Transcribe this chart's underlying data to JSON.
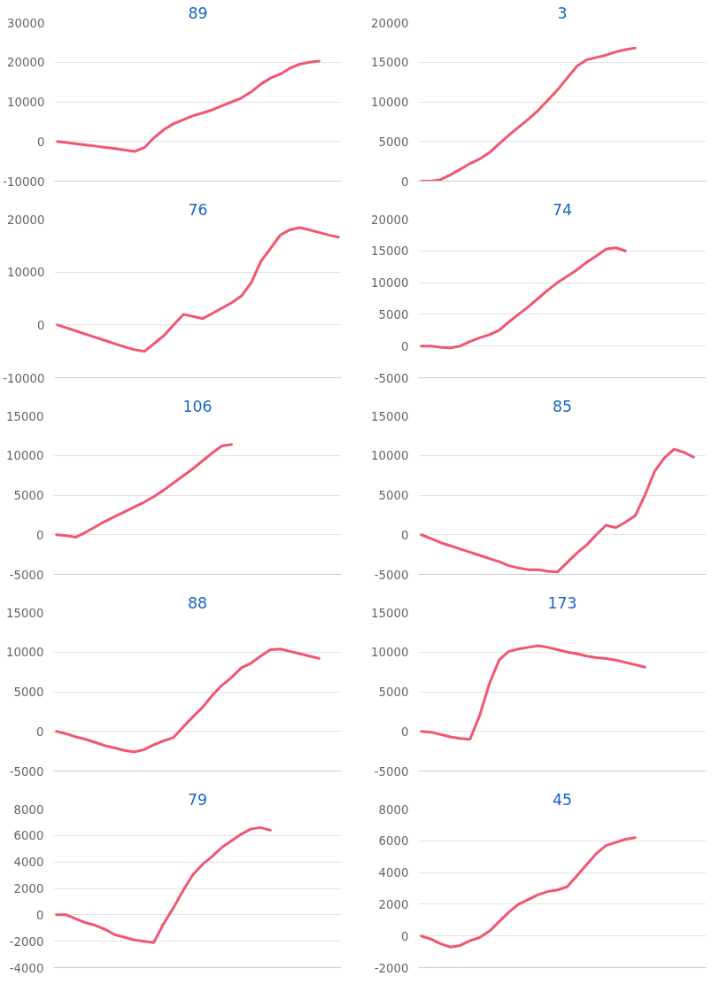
{
  "chart_data": [
    {
      "type": "line",
      "title": "89",
      "categories": [
        null,
        null,
        null,
        null,
        null,
        null,
        null,
        null,
        null,
        null,
        null,
        null,
        null,
        null,
        null,
        null,
        null,
        null,
        null,
        null,
        null,
        null,
        null,
        null,
        null,
        null,
        null,
        null,
        null,
        null
      ],
      "values": [
        0,
        -300,
        -600,
        -900,
        -1200,
        -1500,
        -1800,
        -2200,
        -2500,
        -1500,
        1000,
        3000,
        4500,
        5500,
        6500,
        7200,
        8000,
        9000,
        10000,
        11000,
        12500,
        14500,
        16000,
        17000,
        18500,
        19500,
        20000,
        20300,
        null,
        null
      ],
      "color": "#f2566e",
      "ylim": [
        -10000,
        30000
      ],
      "yticks": [
        -10000,
        0,
        10000,
        20000,
        30000
      ],
      "grid": "y"
    },
    {
      "type": "line",
      "title": "3",
      "categories": [
        null,
        null,
        null,
        null,
        null,
        null,
        null,
        null,
        null,
        null,
        null,
        null,
        null,
        null,
        null,
        null,
        null,
        null,
        null,
        null,
        null,
        null,
        null,
        null,
        null,
        null,
        null,
        null,
        null,
        null
      ],
      "values": [
        0,
        0,
        200,
        800,
        1500,
        2200,
        2800,
        3600,
        4700,
        5800,
        6800,
        7800,
        8900,
        10200,
        11500,
        13000,
        14500,
        15300,
        15600,
        15900,
        16300,
        16600,
        16800,
        null,
        null,
        null,
        null,
        null,
        null,
        null
      ],
      "color": "#f2566e",
      "ylim": [
        0,
        20000
      ],
      "yticks": [
        0,
        5000,
        10000,
        15000,
        20000
      ],
      "grid": "y"
    },
    {
      "type": "line",
      "title": "76",
      "categories": [
        null,
        null,
        null,
        null,
        null,
        null,
        null,
        null,
        null,
        null,
        null,
        null,
        null,
        null,
        null,
        null,
        null,
        null,
        null,
        null,
        null,
        null,
        null,
        null,
        null,
        null,
        null,
        null,
        null,
        null
      ],
      "values": [
        0,
        -600,
        -1200,
        -1800,
        -2400,
        -3000,
        -3600,
        -4200,
        -4700,
        -5000,
        -3500,
        -2000,
        0,
        2000,
        1600,
        1200,
        2200,
        3200,
        4200,
        5500,
        8000,
        12000,
        14500,
        17000,
        18000,
        18400,
        18000,
        17500,
        17000,
        16600
      ],
      "color": "#f2566e",
      "ylim": [
        -10000,
        20000
      ],
      "yticks": [
        -10000,
        0,
        10000,
        20000
      ],
      "grid": "y"
    },
    {
      "type": "line",
      "title": "74",
      "categories": [
        null,
        null,
        null,
        null,
        null,
        null,
        null,
        null,
        null,
        null,
        null,
        null,
        null,
        null,
        null,
        null,
        null,
        null,
        null,
        null,
        null,
        null,
        null,
        null,
        null,
        null,
        null,
        null,
        null,
        null
      ],
      "values": [
        0,
        0,
        -200,
        -300,
        0,
        700,
        1300,
        1800,
        2500,
        3800,
        5000,
        6200,
        7500,
        8800,
        10000,
        11000,
        12000,
        13200,
        14200,
        15300,
        15500,
        15000,
        null,
        null,
        null,
        null,
        null,
        null,
        null,
        null
      ],
      "color": "#f2566e",
      "ylim": [
        -5000,
        20000
      ],
      "yticks": [
        -5000,
        0,
        5000,
        10000,
        15000,
        20000
      ],
      "grid": "y"
    },
    {
      "type": "line",
      "title": "106",
      "categories": [
        null,
        null,
        null,
        null,
        null,
        null,
        null,
        null,
        null,
        null,
        null,
        null,
        null,
        null,
        null,
        null,
        null,
        null,
        null,
        null,
        null,
        null,
        null,
        null,
        null,
        null,
        null,
        null,
        null,
        null
      ],
      "values": [
        0,
        -100,
        -300,
        300,
        1000,
        1700,
        2300,
        2900,
        3500,
        4100,
        4800,
        5600,
        6500,
        7400,
        8300,
        9300,
        10300,
        11200,
        11400,
        null,
        null,
        null,
        null,
        null,
        null,
        null,
        null,
        null,
        null,
        null
      ],
      "color": "#f2566e",
      "ylim": [
        -5000,
        15000
      ],
      "yticks": [
        -5000,
        0,
        5000,
        10000,
        15000
      ],
      "grid": "y"
    },
    {
      "type": "line",
      "title": "85",
      "categories": [
        null,
        null,
        null,
        null,
        null,
        null,
        null,
        null,
        null,
        null,
        null,
        null,
        null,
        null,
        null,
        null,
        null,
        null,
        null,
        null,
        null,
        null,
        null,
        null,
        null,
        null,
        null,
        null,
        null,
        null
      ],
      "values": [
        0,
        -500,
        -1000,
        -1400,
        -1800,
        -2200,
        -2600,
        -3000,
        -3400,
        -3900,
        -4200,
        -4400,
        -4400,
        -4600,
        -4700,
        -3500,
        -2300,
        -1300,
        0,
        1200,
        900,
        1600,
        2400,
        5000,
        8000,
        9700,
        10800,
        10400,
        9800,
        null
      ],
      "color": "#f2566e",
      "ylim": [
        -5000,
        15000
      ],
      "yticks": [
        -5000,
        0,
        5000,
        10000,
        15000
      ],
      "grid": "y"
    },
    {
      "type": "line",
      "title": "88",
      "categories": [
        null,
        null,
        null,
        null,
        null,
        null,
        null,
        null,
        null,
        null,
        null,
        null,
        null,
        null,
        null,
        null,
        null,
        null,
        null,
        null,
        null,
        null,
        null,
        null,
        null,
        null,
        null,
        null,
        null,
        null
      ],
      "values": [
        0,
        -300,
        -700,
        -1000,
        -1400,
        -1800,
        -2100,
        -2400,
        -2600,
        -2300,
        -1700,
        -1200,
        -800,
        500,
        1800,
        3000,
        4500,
        5800,
        6800,
        8000,
        8600,
        9500,
        10300,
        10400,
        10100,
        9800,
        9500,
        9200,
        null,
        null
      ],
      "color": "#f2566e",
      "ylim": [
        -5000,
        15000
      ],
      "yticks": [
        -5000,
        0,
        5000,
        10000,
        15000
      ],
      "grid": "y"
    },
    {
      "type": "line",
      "title": "173",
      "categories": [
        null,
        null,
        null,
        null,
        null,
        null,
        null,
        null,
        null,
        null,
        null,
        null,
        null,
        null,
        null,
        null,
        null,
        null,
        null,
        null,
        null,
        null,
        null,
        null,
        null,
        null,
        null,
        null,
        null,
        null
      ],
      "values": [
        0,
        -100,
        -400,
        -700,
        -900,
        -1000,
        2000,
        6000,
        9000,
        10100,
        10400,
        10600,
        10800,
        10600,
        10300,
        10000,
        9800,
        9500,
        9300,
        9200,
        9000,
        8700,
        8400,
        8100,
        null,
        null,
        null,
        null,
        null,
        null
      ],
      "color": "#f2566e",
      "ylim": [
        -5000,
        15000
      ],
      "yticks": [
        -5000,
        0,
        5000,
        10000,
        15000
      ],
      "grid": "y"
    },
    {
      "type": "line",
      "title": "79",
      "categories": [
        null,
        null,
        null,
        null,
        null,
        null,
        null,
        null,
        null,
        null,
        null,
        null,
        null,
        null,
        null,
        null,
        null,
        null,
        null,
        null,
        null,
        null,
        null,
        null,
        null,
        null,
        null,
        null,
        null,
        null
      ],
      "values": [
        0,
        0,
        -300,
        -600,
        -800,
        -1100,
        -1500,
        -1700,
        -1900,
        -2000,
        -2100,
        -700,
        500,
        1800,
        3000,
        3800,
        4400,
        5100,
        5600,
        6100,
        6500,
        6600,
        6400,
        null,
        null,
        null,
        null,
        null,
        null,
        null
      ],
      "color": "#f2566e",
      "ylim": [
        -4000,
        8000
      ],
      "yticks": [
        -4000,
        -2000,
        0,
        2000,
        4000,
        6000,
        8000
      ],
      "grid": "y"
    },
    {
      "type": "line",
      "title": "45",
      "categories": [
        null,
        null,
        null,
        null,
        null,
        null,
        null,
        null,
        null,
        null,
        null,
        null,
        null,
        null,
        null,
        null,
        null,
        null,
        null,
        null,
        null,
        null,
        null,
        null,
        null,
        null,
        null,
        null,
        null,
        null
      ],
      "values": [
        0,
        -200,
        -500,
        -700,
        -600,
        -300,
        -100,
        300,
        900,
        1500,
        2000,
        2300,
        2600,
        2800,
        2900,
        3100,
        3800,
        4500,
        5200,
        5700,
        5900,
        6100,
        6200,
        null,
        null,
        null,
        null,
        null,
        null,
        null
      ],
      "color": "#f2566e",
      "ylim": [
        -2000,
        8000
      ],
      "yticks": [
        -2000,
        0,
        2000,
        4000,
        6000,
        8000
      ],
      "grid": "y"
    }
  ]
}
